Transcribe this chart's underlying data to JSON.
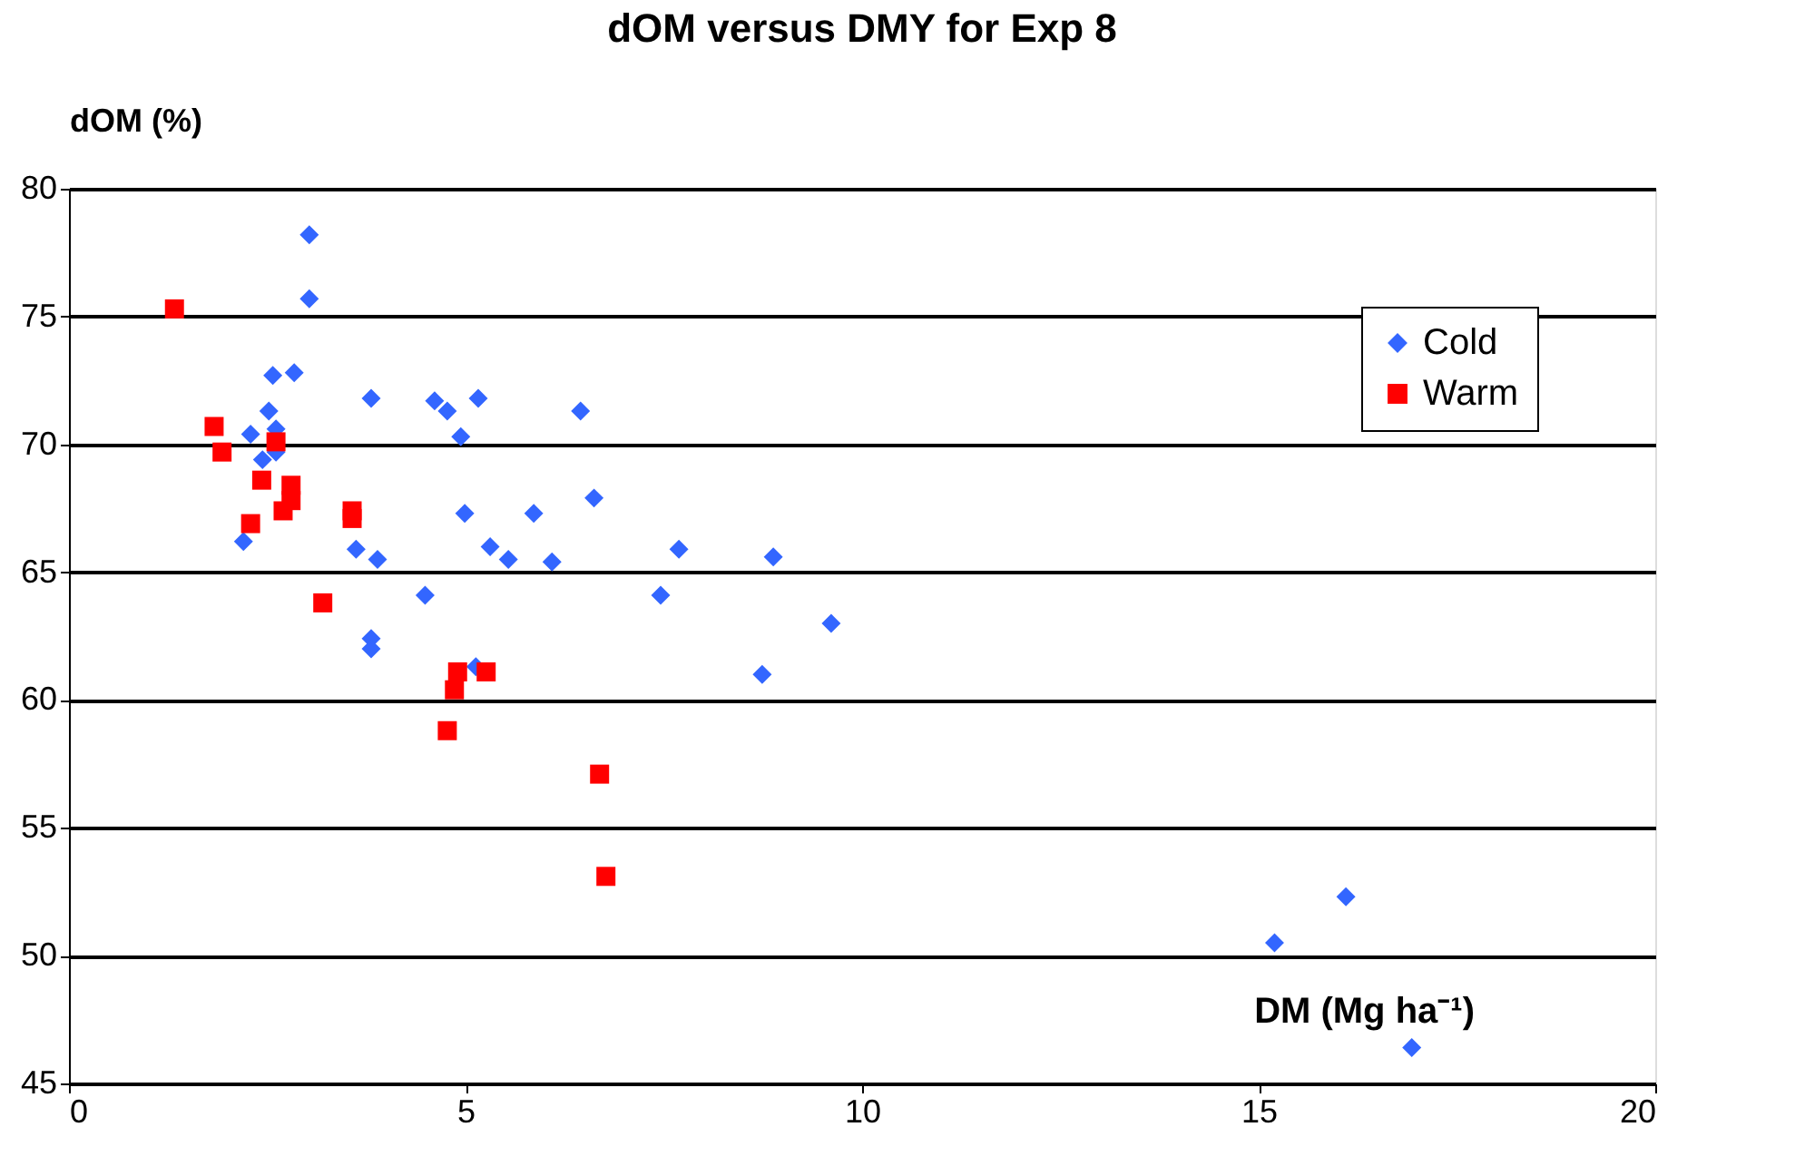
{
  "chart_data": {
    "type": "scatter",
    "title": "dOM versus DMY for Exp 8",
    "xlabel": "DM (Mg ha⁻¹)",
    "ylabel": "dOM (%)",
    "xlim": [
      0,
      20
    ],
    "xticks": [
      0,
      5,
      10,
      15,
      20
    ],
    "ylim": [
      45,
      80
    ],
    "yticks": [
      45,
      50,
      55,
      60,
      65,
      70,
      75,
      80
    ],
    "grid": "y",
    "legend": "top right",
    "series": [
      {
        "name": "Cold",
        "color": "#3366ff",
        "marker": "diamond",
        "x": [
          3.03,
          3.03,
          2.57,
          2.84,
          3.81,
          4.61,
          4.77,
          5.16,
          6.45,
          2.52,
          2.29,
          2.61,
          4.94,
          2.44,
          2.61,
          6.62,
          4.99,
          5.86,
          2.2,
          3.62,
          3.89,
          5.31,
          5.54,
          6.09,
          4.49,
          3.81,
          3.81,
          5.13,
          7.69,
          8.88,
          7.46,
          9.61,
          8.74,
          15.2,
          16.1,
          16.93
        ],
        "values": [
          78.2,
          75.7,
          72.7,
          72.8,
          71.8,
          71.7,
          71.3,
          71.8,
          71.3,
          71.3,
          70.4,
          70.6,
          70.3,
          69.4,
          69.7,
          67.9,
          67.3,
          67.3,
          66.2,
          65.9,
          65.5,
          66.0,
          65.5,
          65.4,
          64.1,
          62.4,
          62.0,
          61.3,
          65.9,
          65.6,
          64.1,
          63.0,
          61.0,
          50.5,
          52.3,
          46.4
        ]
      },
      {
        "name": "Warm",
        "color": "#ff0000",
        "marker": "square",
        "x": [
          1.33,
          1.83,
          1.93,
          2.61,
          2.43,
          2.8,
          2.8,
          2.7,
          2.29,
          3.57,
          3.57,
          3.2,
          4.9,
          5.26,
          4.86,
          4.77,
          6.69,
          6.77
        ],
        "values": [
          75.3,
          70.7,
          69.7,
          70.1,
          68.6,
          68.4,
          67.8,
          67.4,
          66.9,
          67.4,
          67.1,
          63.8,
          61.1,
          61.1,
          60.4,
          58.8,
          57.1,
          53.1
        ]
      }
    ]
  }
}
